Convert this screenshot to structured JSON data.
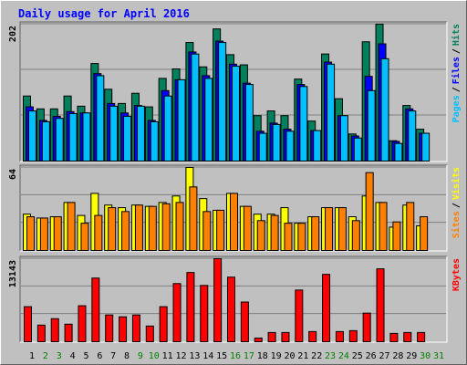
{
  "title": "Daily usage for April 2016",
  "legend_sep": "/",
  "chart_data": [
    {
      "type": "bar",
      "categories": [
        "1",
        "2",
        "3",
        "4",
        "5",
        "6",
        "7",
        "8",
        "9",
        "10",
        "11",
        "12",
        "13",
        "14",
        "15",
        "16",
        "17",
        "18",
        "19",
        "20",
        "21",
        "22",
        "23",
        "24",
        "25",
        "26",
        "27",
        "28",
        "29",
        "30",
        "31"
      ],
      "ylim": [
        0,
        202
      ],
      "yticks": [
        202
      ],
      "grid_divisions": 3,
      "series": [
        {
          "name": "Hits",
          "color": "#00805c",
          "values": [
            96,
            77,
            77,
            96,
            81,
            144,
            106,
            85,
            100,
            80,
            122,
            136,
            175,
            139,
            195,
            157,
            142,
            67,
            74,
            67,
            121,
            59,
            158,
            92,
            40,
            176,
            202,
            30,
            82,
            47,
            null
          ]
        },
        {
          "name": "Files",
          "color": "#0000ff",
          "values": [
            80,
            60,
            66,
            73,
            71,
            129,
            85,
            71,
            82,
            60,
            104,
            120,
            161,
            126,
            177,
            143,
            115,
            44,
            56,
            47,
            113,
            45,
            146,
            67,
            37,
            125,
            173,
            29,
            77,
            41,
            null
          ]
        },
        {
          "name": "Pages",
          "color": "#00c0ff",
          "values": [
            74,
            58,
            63,
            70,
            71,
            126,
            81,
            66,
            81,
            58,
            96,
            120,
            158,
            122,
            175,
            140,
            113,
            41,
            54,
            44,
            110,
            45,
            143,
            67,
            34,
            104,
            151,
            26,
            74,
            41,
            null
          ]
        }
      ]
    },
    {
      "type": "bar",
      "categories": [
        "1",
        "2",
        "3",
        "4",
        "5",
        "6",
        "7",
        "8",
        "9",
        "10",
        "11",
        "12",
        "13",
        "14",
        "15",
        "16",
        "17",
        "18",
        "19",
        "20",
        "21",
        "22",
        "23",
        "24",
        "25",
        "26",
        "27",
        "28",
        "29",
        "30",
        "31"
      ],
      "ylim": [
        0,
        64
      ],
      "yticks": [
        64
      ],
      "grid_divisions": 3,
      "series": [
        {
          "name": "Visits",
          "color": "#ffff00",
          "values": [
            28,
            25,
            26,
            37,
            27,
            44,
            35,
            33,
            35,
            34,
            37,
            42,
            64,
            40,
            31,
            44,
            34,
            28,
            28,
            33,
            21,
            26,
            33,
            33,
            26,
            42,
            37,
            18,
            35,
            19,
            null
          ]
        },
        {
          "name": "Sites",
          "color": "#ff8000",
          "values": [
            26,
            25,
            26,
            37,
            21,
            27,
            33,
            30,
            35,
            34,
            36,
            37,
            49,
            30,
            31,
            44,
            34,
            23,
            27,
            21,
            21,
            26,
            33,
            33,
            23,
            60,
            37,
            22,
            37,
            26,
            null
          ]
        }
      ]
    },
    {
      "type": "bar",
      "categories": [
        "1",
        "2",
        "3",
        "4",
        "5",
        "6",
        "7",
        "8",
        "9",
        "10",
        "11",
        "12",
        "13",
        "14",
        "15",
        "16",
        "17",
        "18",
        "19",
        "20",
        "21",
        "22",
        "23",
        "24",
        "25",
        "26",
        "27",
        "28",
        "29",
        "30",
        "31"
      ],
      "category_colors": [
        "#000000",
        "#008000",
        "#008000",
        "#000000",
        "#000000",
        "#000000",
        "#000000",
        "#000000",
        "#008000",
        "#008000",
        "#000000",
        "#000000",
        "#000000",
        "#000000",
        "#000000",
        "#008000",
        "#008000",
        "#000000",
        "#000000",
        "#000000",
        "#000000",
        "#000000",
        "#008000",
        "#008000",
        "#000000",
        "#000000",
        "#000000",
        "#000000",
        "#000000",
        "#008000",
        "#008000"
      ],
      "ylim": [
        0,
        13143
      ],
      "yticks": [
        13143
      ],
      "grid_divisions": 3,
      "series": [
        {
          "name": "KBytes",
          "color": "#ff0000",
          "values": [
            5549,
            2629,
            3651,
            2775,
            5695,
            10077,
            4235,
            3943,
            4235,
            2483,
            5549,
            9200,
            10953,
            8908,
            13143,
            10222,
            6280,
            584,
            1460,
            1460,
            8178,
            1606,
            10661,
            1606,
            1752,
            4527,
            11537,
            1314,
            1460,
            1460,
            null
          ]
        }
      ]
    }
  ]
}
